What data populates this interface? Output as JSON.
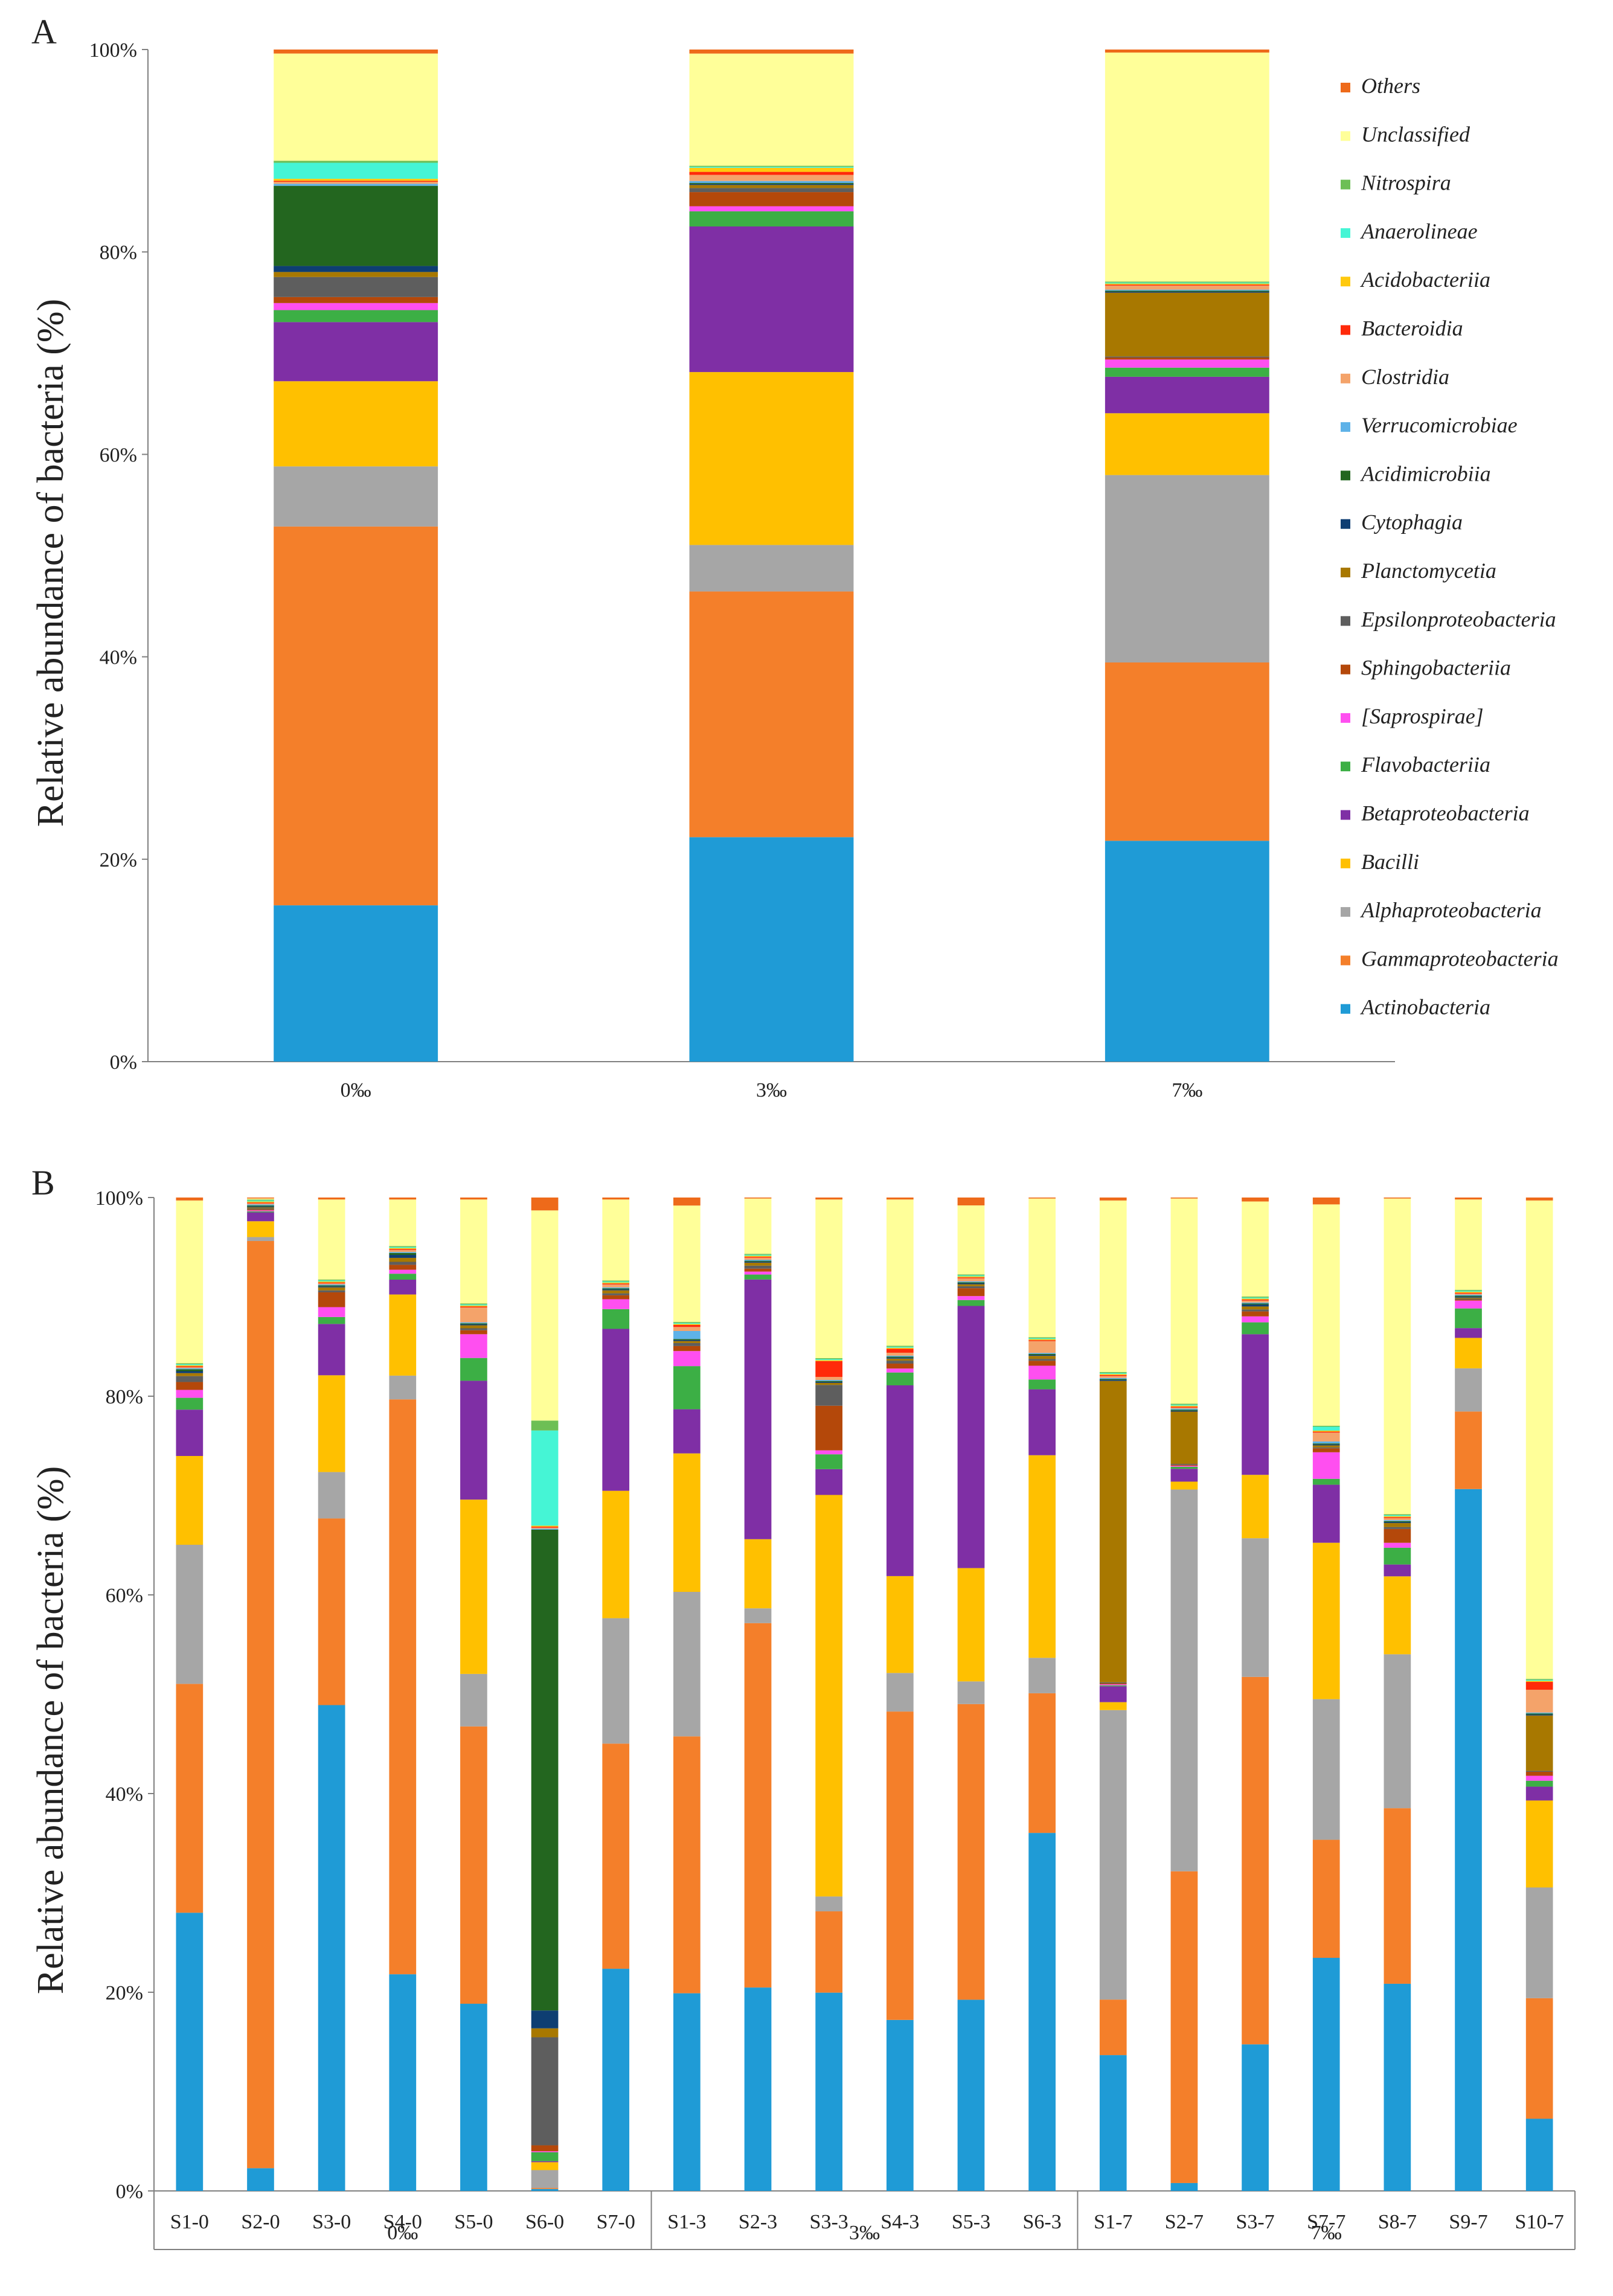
{
  "chart_data": [
    {
      "panel": "A",
      "type": "stacked-bar",
      "ylabel": "Relative abundance of bacteria (%)",
      "ylim": [
        0,
        100
      ],
      "yticks": [
        "0%",
        "20%",
        "40%",
        "60%",
        "80%",
        "100%"
      ],
      "grid": false,
      "legend_position": "right",
      "categories": [
        "0‰",
        "3‰",
        "7‰"
      ],
      "series": [
        {
          "name": "Actinobacteria",
          "color": "#1F9BD6",
          "values": [
            15.6,
            22.2,
            21.8
          ]
        },
        {
          "name": "Gammaproteobacteria",
          "color": "#F47F2A",
          "values": [
            37.8,
            24.3,
            17.6
          ]
        },
        {
          "name": "Alphaproteobacteria",
          "color": "#A6A6A6",
          "values": [
            6.0,
            4.6,
            18.5
          ]
        },
        {
          "name": "Bacilli",
          "color": "#FFC000",
          "values": [
            8.5,
            17.1,
            6.1
          ]
        },
        {
          "name": "Betaproteobacteria",
          "color": "#7F2FA5",
          "values": [
            5.9,
            14.4,
            3.6
          ]
        },
        {
          "name": "Flavobacteriia",
          "color": "#3CAF45",
          "values": [
            1.2,
            1.5,
            0.9
          ]
        },
        {
          "name": "[Saprospirae]",
          "color": "#FF4FF0",
          "values": [
            0.7,
            0.5,
            0.8
          ]
        },
        {
          "name": "Sphingobacteriia",
          "color": "#B4480A",
          "values": [
            0.6,
            1.4,
            0.2
          ]
        },
        {
          "name": "Epsilonproteobacteria",
          "color": "#5E5E5E",
          "values": [
            2.0,
            0.4,
            0.1
          ]
        },
        {
          "name": "Planctomycetia",
          "color": "#A87800",
          "values": [
            0.5,
            0.3,
            6.3
          ]
        },
        {
          "name": "Cytophagia",
          "color": "#0E3E72",
          "values": [
            0.6,
            0.1,
            0.1
          ]
        },
        {
          "name": "Acidimicrobiia",
          "color": "#23661F",
          "values": [
            8.0,
            0.1,
            0.1
          ]
        },
        {
          "name": "Verrucomicrobiae",
          "color": "#5EB2E8",
          "values": [
            0.2,
            0.2,
            0.1
          ]
        },
        {
          "name": "Clostridia",
          "color": "#F4A36A",
          "values": [
            0.2,
            0.6,
            0.4
          ]
        },
        {
          "name": "Bacteroidia",
          "color": "#FF2A0A",
          "values": [
            0.1,
            0.3,
            0.1
          ]
        },
        {
          "name": "Acidobacteriia",
          "color": "#FFC90E",
          "values": [
            0.2,
            0.4,
            0.1
          ]
        },
        {
          "name": "Anaerolineae",
          "color": "#45F5D5",
          "values": [
            1.6,
            0.1,
            0.1
          ]
        },
        {
          "name": "Nitrospira",
          "color": "#6DBF55",
          "values": [
            0.2,
            0.1,
            0.1
          ]
        },
        {
          "name": "Unclassified",
          "color": "#FFFF99",
          "values": [
            10.7,
            11.1,
            22.6
          ]
        },
        {
          "name": "Others",
          "color": "#EE6A1A",
          "values": [
            0.4,
            0.4,
            0.3
          ]
        }
      ]
    },
    {
      "panel": "B",
      "type": "stacked-bar",
      "ylabel": "Relative abundance of bacteria (%)",
      "ylim": [
        0,
        100
      ],
      "yticks": [
        "0%",
        "20%",
        "40%",
        "60%",
        "80%",
        "100%"
      ],
      "grid": false,
      "categories": [
        "S1-0",
        "S2-0",
        "S3-0",
        "S4-0",
        "S5-0",
        "S6-0",
        "S7-0",
        "S1-3",
        "S2-3",
        "S3-3",
        "S4-3",
        "S5-3",
        "S6-3",
        "S1-7",
        "S2-7",
        "S3-7",
        "S7-7",
        "S8-7",
        "S9-7",
        "S10-7"
      ],
      "groups": [
        {
          "label": "0‰",
          "count": 7
        },
        {
          "label": "3‰",
          "count": 6
        },
        {
          "label": "7‰",
          "count": 7
        }
      ],
      "series": [
        {
          "name": "Actinobacteria",
          "color": "#1F9BD6",
          "values": [
            28.2,
            2.3,
            49.2,
            21.9,
            18.9,
            0.2,
            22.5,
            19.7,
            20.6,
            20.0,
            17.3,
            19.4,
            36.4,
            13.7,
            0.8,
            14.8,
            23.7,
            21.0,
            71.5,
            7.3
          ]
        },
        {
          "name": "Gammaproteobacteria",
          "color": "#F47F2A",
          "values": [
            23.2,
            93.8,
            18.9,
            58.1,
            28.0,
            0.1,
            22.8,
            25.6,
            36.9,
            8.2,
            31.2,
            30.0,
            14.2,
            5.6,
            31.6,
            37.1,
            12.0,
            17.8,
            7.9,
            12.2
          ]
        },
        {
          "name": "Alphaproteobacteria",
          "color": "#A6A6A6",
          "values": [
            14.1,
            0.4,
            4.7,
            2.4,
            5.3,
            1.8,
            12.7,
            14.4,
            1.5,
            1.5,
            3.9,
            2.3,
            3.6,
            29.2,
            38.7,
            14.0,
            14.3,
            15.6,
            4.4,
            11.2
          ]
        },
        {
          "name": "Bacilli",
          "color": "#FFC000",
          "values": [
            9.0,
            1.6,
            9.8,
            8.2,
            17.6,
            0.8,
            12.9,
            13.8,
            7.0,
            40.5,
            9.8,
            11.5,
            20.6,
            0.8,
            0.8,
            6.4,
            15.9,
            7.9,
            3.1,
            8.8
          ]
        },
        {
          "name": "Betaproteobacteria",
          "color": "#7F2FA5",
          "values": [
            4.7,
            0.9,
            5.2,
            1.5,
            12.0,
            0.1,
            16.4,
            4.4,
            26.3,
            2.6,
            19.3,
            26.6,
            6.7,
            1.6,
            1.3,
            14.2,
            5.9,
            1.2,
            1.0,
            1.4
          ]
        },
        {
          "name": "Flavobacteriia",
          "color": "#3CAF45",
          "values": [
            1.2,
            0.1,
            0.7,
            0.6,
            2.3,
            0.9,
            2.0,
            4.3,
            0.5,
            1.5,
            1.3,
            0.6,
            1.0,
            0.1,
            0.2,
            1.2,
            0.6,
            1.7,
            2.0,
            0.6
          ]
        },
        {
          "name": "[Saprospirae]",
          "color": "#FF4FF0",
          "values": [
            0.8,
            0.1,
            1.0,
            0.4,
            2.4,
            0.1,
            1.0,
            1.5,
            0.3,
            0.4,
            0.4,
            0.4,
            1.4,
            0.1,
            0.1,
            0.6,
            2.7,
            0.5,
            0.8,
            0.5
          ]
        },
        {
          "name": "Sphingobacteriia",
          "color": "#B4480A",
          "values": [
            0.8,
            0.1,
            1.5,
            0.5,
            0.4,
            0.6,
            0.4,
            0.5,
            0.3,
            4.5,
            0.5,
            0.8,
            0.5,
            0.1,
            0.1,
            0.5,
            0.4,
            1.4,
            0.1,
            0.4
          ]
        },
        {
          "name": "Epsilonproteobacteria",
          "color": "#5E5E5E",
          "values": [
            0.6,
            0.1,
            0.2,
            0.3,
            0.2,
            10.9,
            0.2,
            0.3,
            0.3,
            2.1,
            0.3,
            0.2,
            0.2,
            0.1,
            0.1,
            0.2,
            0.1,
            0.2,
            0.1,
            0.1
          ]
        },
        {
          "name": "Planctomycetia",
          "color": "#A87800",
          "values": [
            0.3,
            0.1,
            0.3,
            0.4,
            0.3,
            0.9,
            0.3,
            0.2,
            0.3,
            0.2,
            0.2,
            0.2,
            0.3,
            30.4,
            5.3,
            0.3,
            0.2,
            0.4,
            0.1,
            5.6
          ]
        },
        {
          "name": "Cytophagia",
          "color": "#0E3E72",
          "values": [
            0.2,
            0.1,
            0.1,
            0.3,
            0.1,
            1.8,
            0.1,
            0.1,
            0.1,
            0.1,
            0.1,
            0.1,
            0.1,
            0.1,
            0.1,
            0.2,
            0.1,
            0.1,
            0.1,
            0.1
          ]
        },
        {
          "name": "Acidimicrobiia",
          "color": "#23661F",
          "values": [
            0.2,
            0.1,
            0.1,
            0.2,
            0.1,
            48.5,
            0.1,
            0.1,
            0.1,
            0.1,
            0.1,
            0.1,
            0.1,
            0.1,
            0.1,
            0.1,
            0.1,
            0.1,
            0.1,
            0.1
          ]
        },
        {
          "name": "Verrucomicrobiae",
          "color": "#5EB2E8",
          "values": [
            0.1,
            0.1,
            0.1,
            0.1,
            0.1,
            0.1,
            0.1,
            0.8,
            0.1,
            0.1,
            0.1,
            0.1,
            0.1,
            0.1,
            0.1,
            0.1,
            0.2,
            0.1,
            0.1,
            0.1
          ]
        },
        {
          "name": "Clostridia",
          "color": "#F4A36A",
          "values": [
            0.1,
            0.1,
            0.1,
            0.2,
            1.5,
            0.1,
            0.3,
            0.4,
            0.2,
            0.3,
            0.3,
            0.3,
            1.2,
            0.2,
            0.1,
            0.2,
            0.9,
            0.2,
            0.1,
            2.3
          ]
        },
        {
          "name": "Bacteroidia",
          "color": "#FF2A0A",
          "values": [
            0.1,
            0.1,
            0.1,
            0.1,
            0.1,
            0.1,
            0.1,
            0.2,
            0.1,
            1.6,
            0.4,
            0.1,
            0.1,
            0.1,
            0.1,
            0.1,
            0.1,
            0.1,
            0.1,
            0.8
          ]
        },
        {
          "name": "Acidobacteriia",
          "color": "#FFC90E",
          "values": [
            0.1,
            0.1,
            0.1,
            0.1,
            0.1,
            0.1,
            0.1,
            0.1,
            0.1,
            0.1,
            0.1,
            0.1,
            0.1,
            0.1,
            0.1,
            0.1,
            0.1,
            0.1,
            0.1,
            0.1
          ]
        },
        {
          "name": "Anaerolineae",
          "color": "#45F5D5",
          "values": [
            0.1,
            0.1,
            0.1,
            0.1,
            0.1,
            9.6,
            0.1,
            0.1,
            0.1,
            0.1,
            0.1,
            0.1,
            0.1,
            0.1,
            0.1,
            0.1,
            0.4,
            0.1,
            0.1,
            0.1
          ]
        },
        {
          "name": "Nitrospira",
          "color": "#6DBF55",
          "values": [
            0.1,
            0.1,
            0.1,
            0.1,
            0.1,
            1.0,
            0.1,
            0.1,
            0.1,
            0.1,
            0.1,
            0.1,
            0.1,
            0.1,
            0.1,
            0.1,
            0.1,
            0.1,
            0.1,
            0.1
          ]
        },
        {
          "name": "Unclassified",
          "color": "#FFFF99",
          "values": [
            16.5,
            0.1,
            8.1,
            4.7,
            10.5,
            21.2,
            8.2,
            11.6,
            5.6,
            16.0,
            14.8,
            7.0,
            14.1,
            17.3,
            20.8,
            9.6,
            22.5,
            32.0,
            9.2,
            48.4
          ]
        },
        {
          "name": "Others",
          "color": "#EE6A1A",
          "values": [
            0.3,
            0.1,
            0.2,
            0.2,
            0.2,
            1.3,
            0.2,
            0.8,
            0.1,
            0.2,
            0.2,
            0.8,
            0.1,
            0.3,
            0.1,
            0.4,
            0.7,
            0.1,
            0.2,
            0.3
          ]
        }
      ]
    }
  ],
  "panel_labels": [
    "A",
    "B"
  ]
}
